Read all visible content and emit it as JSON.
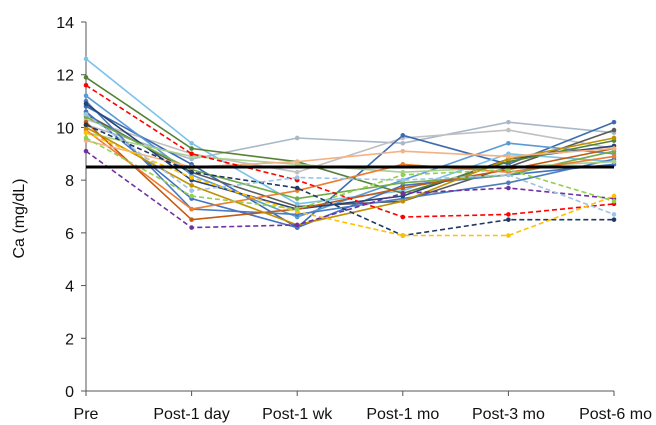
{
  "chart_data": {
    "type": "line",
    "title": "",
    "xlabel": "",
    "ylabel": "Ca (mg/dL)",
    "categories": [
      "Pre",
      "Post-1 day",
      "Post-1 wk",
      "Post-1 mo",
      "Post-3 mo",
      "Post-6 mo"
    ],
    "ylim": [
      0,
      14
    ],
    "yticks": [
      0,
      2,
      4,
      6,
      8,
      10,
      12,
      14
    ],
    "grid": false,
    "legend": "none",
    "reference_line": {
      "value": 8.5,
      "color": "#000000"
    },
    "series": [
      {
        "color": "#a9b8c8",
        "dashed": false,
        "values": [
          10.1,
          8.8,
          9.6,
          9.4,
          10.2,
          9.8
        ]
      },
      {
        "color": "#c0c0c0",
        "dashed": false,
        "values": [
          10.3,
          9.0,
          8.3,
          9.6,
          9.9,
          9.2
        ]
      },
      {
        "color": "#3d6bb3",
        "dashed": false,
        "values": [
          10.8,
          8.6,
          6.2,
          9.7,
          8.6,
          10.2
        ]
      },
      {
        "color": "#5a5a5a",
        "dashed": false,
        "values": [
          10.5,
          8.3,
          7.0,
          7.2,
          8.5,
          9.9
        ]
      },
      {
        "color": "#7cc2e8",
        "dashed": false,
        "values": [
          12.6,
          9.4,
          7.1,
          7.6,
          9.0,
          8.7
        ]
      },
      {
        "color": "#5b9bd5",
        "dashed": false,
        "values": [
          11.2,
          8.2,
          6.6,
          8.0,
          9.4,
          9.0
        ]
      },
      {
        "color": "#4a7dbf",
        "dashed": false,
        "values": [
          11.0,
          6.9,
          6.7,
          7.3,
          7.9,
          8.8
        ]
      },
      {
        "color": "#4472c4",
        "dashed": false,
        "values": [
          10.6,
          7.3,
          6.2,
          7.8,
          8.2,
          8.6
        ]
      },
      {
        "color": "#264478",
        "dashed": false,
        "values": [
          10.9,
          8.0,
          6.9,
          7.4,
          8.8,
          9.3
        ]
      },
      {
        "color": "#548235",
        "dashed": false,
        "values": [
          11.9,
          9.2,
          8.7,
          7.5,
          8.7,
          9.5
        ]
      },
      {
        "color": "#70ad47",
        "dashed": false,
        "values": [
          10.4,
          8.4,
          7.3,
          7.9,
          8.2,
          9.1
        ]
      },
      {
        "color": "#a9d18e",
        "dashed": false,
        "values": [
          9.8,
          8.9,
          8.6,
          8.3,
          8.5,
          8.7
        ]
      },
      {
        "color": "#c55a11",
        "dashed": false,
        "values": [
          10.2,
          6.5,
          6.9,
          7.7,
          8.4,
          9.2
        ]
      },
      {
        "color": "#ed7d31",
        "dashed": false,
        "values": [
          9.9,
          6.9,
          7.6,
          8.6,
          8.3,
          8.9
        ]
      },
      {
        "color": "#bf9000",
        "dashed": false,
        "values": [
          10.0,
          7.8,
          6.3,
          7.2,
          8.8,
          9.6
        ]
      },
      {
        "color": "#f4b183",
        "dashed": false,
        "values": [
          9.5,
          8.5,
          8.7,
          9.1,
          8.9,
          9.2
        ]
      },
      {
        "color": "#ff0000",
        "dashed": true,
        "values": [
          11.6,
          9.0,
          8.0,
          6.6,
          6.7,
          7.1
        ]
      },
      {
        "color": "#7030a0",
        "dashed": true,
        "values": [
          9.1,
          6.2,
          6.3,
          7.5,
          7.7,
          7.3
        ]
      },
      {
        "color": "#1f3864",
        "dashed": true,
        "values": [
          10.1,
          8.3,
          7.7,
          5.9,
          6.5,
          6.5
        ]
      },
      {
        "color": "#ffc000",
        "dashed": true,
        "values": [
          9.8,
          8.1,
          6.8,
          5.9,
          5.9,
          7.4
        ]
      },
      {
        "color": "#9dc3e6",
        "dashed": true,
        "values": [
          10.5,
          7.6,
          8.1,
          8.0,
          8.2,
          6.7
        ]
      },
      {
        "color": "#92d050",
        "dashed": true,
        "values": [
          9.6,
          7.4,
          6.9,
          8.2,
          8.4,
          7.2
        ]
      }
    ]
  }
}
